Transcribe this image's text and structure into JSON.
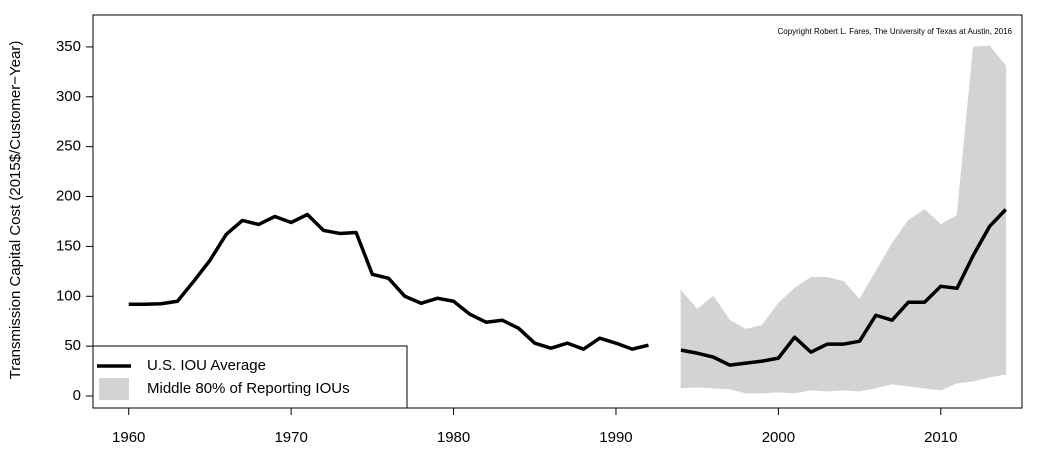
{
  "chart_data": {
    "type": "line",
    "ylabel": "Transmission Capital Cost (2015$/Customer−Year)",
    "annotation": "Copyright Robert L. Fares, The University of Texas at Austin, 2016",
    "x": [
      1960,
      1961,
      1962,
      1963,
      1964,
      1965,
      1966,
      1967,
      1968,
      1969,
      1970,
      1971,
      1972,
      1973,
      1974,
      1975,
      1976,
      1977,
      1978,
      1979,
      1980,
      1981,
      1982,
      1983,
      1984,
      1985,
      1986,
      1987,
      1988,
      1989,
      1990,
      1991,
      1992,
      1993,
      1994,
      1995,
      1996,
      1997,
      1998,
      1999,
      2000,
      2001,
      2002,
      2003,
      2004,
      2005,
      2006,
      2007,
      2008,
      2009,
      2010,
      2011,
      2012,
      2013,
      2014
    ],
    "series": [
      {
        "name": "U.S. IOU Average",
        "color": "#000000",
        "values": [
          92,
          92,
          92.5,
          95,
          115,
          136,
          162,
          176,
          172,
          180,
          174,
          182,
          166,
          163,
          164,
          122,
          118,
          100,
          93,
          98,
          95,
          82,
          74,
          76,
          68,
          53,
          48,
          53,
          47,
          58,
          53,
          47,
          51,
          null,
          46,
          43,
          39,
          31,
          33,
          35,
          38,
          59,
          44,
          52,
          52,
          55,
          81,
          76,
          94,
          94,
          110,
          108,
          141,
          170,
          187
        ]
      },
      {
        "name": "Middle 80% of Reporting IOUs",
        "color": "#d3d3d3",
        "kind": "band",
        "upper": [
          null,
          null,
          null,
          null,
          null,
          null,
          null,
          null,
          null,
          null,
          null,
          null,
          null,
          null,
          null,
          null,
          null,
          null,
          null,
          null,
          null,
          null,
          null,
          null,
          null,
          null,
          null,
          null,
          null,
          null,
          null,
          null,
          null,
          null,
          106,
          87,
          100,
          76,
          67,
          71,
          93,
          108,
          119,
          119,
          115,
          97,
          125,
          153,
          176,
          187,
          172,
          181,
          350,
          351,
          331
        ],
        "lower": [
          null,
          null,
          null,
          null,
          null,
          null,
          null,
          null,
          null,
          null,
          null,
          null,
          null,
          null,
          null,
          null,
          null,
          null,
          null,
          null,
          null,
          null,
          null,
          null,
          null,
          null,
          null,
          null,
          null,
          null,
          null,
          null,
          null,
          null,
          8,
          9,
          8,
          7,
          3,
          3,
          4,
          3,
          6,
          5,
          6,
          5,
          8,
          12,
          10,
          8,
          6,
          13,
          15,
          19,
          22
        ]
      }
    ],
    "xlim": [
      1957.8,
      2015.0
    ],
    "ylim": [
      -12,
      382
    ],
    "xticks": [
      1960,
      1970,
      1980,
      1990,
      2000,
      2010
    ],
    "yticks": [
      0,
      50,
      100,
      150,
      200,
      250,
      300,
      350
    ],
    "legend": "bottomleft"
  }
}
